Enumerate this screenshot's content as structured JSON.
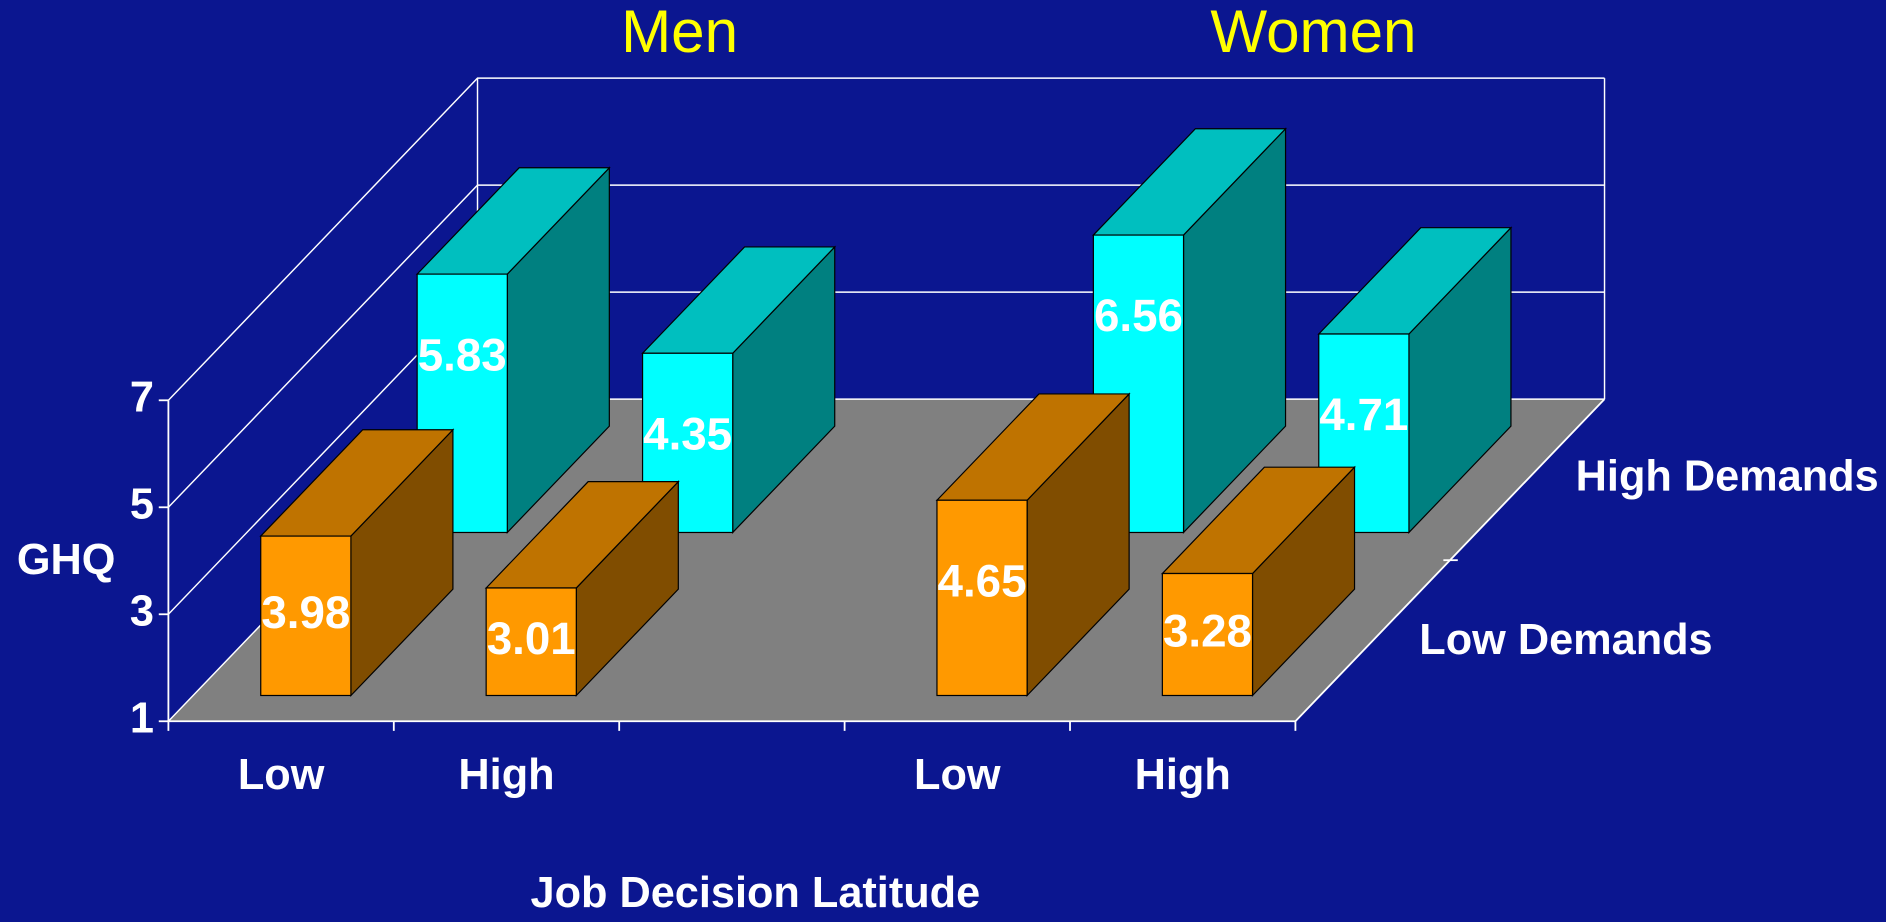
{
  "chart_data": {
    "type": "bar3d",
    "group_labels": [
      "Men",
      "Women"
    ],
    "ylabel": "GHQ",
    "xlabel": "Job Decision Latitude",
    "categories": [
      "Low",
      "High",
      null,
      "Low",
      "High"
    ],
    "series": [
      {
        "name": "Low Demands",
        "color": "#ff9900",
        "values": [
          3.98,
          3.01,
          null,
          4.65,
          3.28
        ]
      },
      {
        "name": "High Demands",
        "color": "#00ffff",
        "values": [
          5.83,
          4.35,
          null,
          6.56,
          4.71
        ]
      }
    ],
    "ylim": [
      1,
      7
    ],
    "yticks": [
      1,
      3,
      5,
      7
    ],
    "grid": true
  }
}
